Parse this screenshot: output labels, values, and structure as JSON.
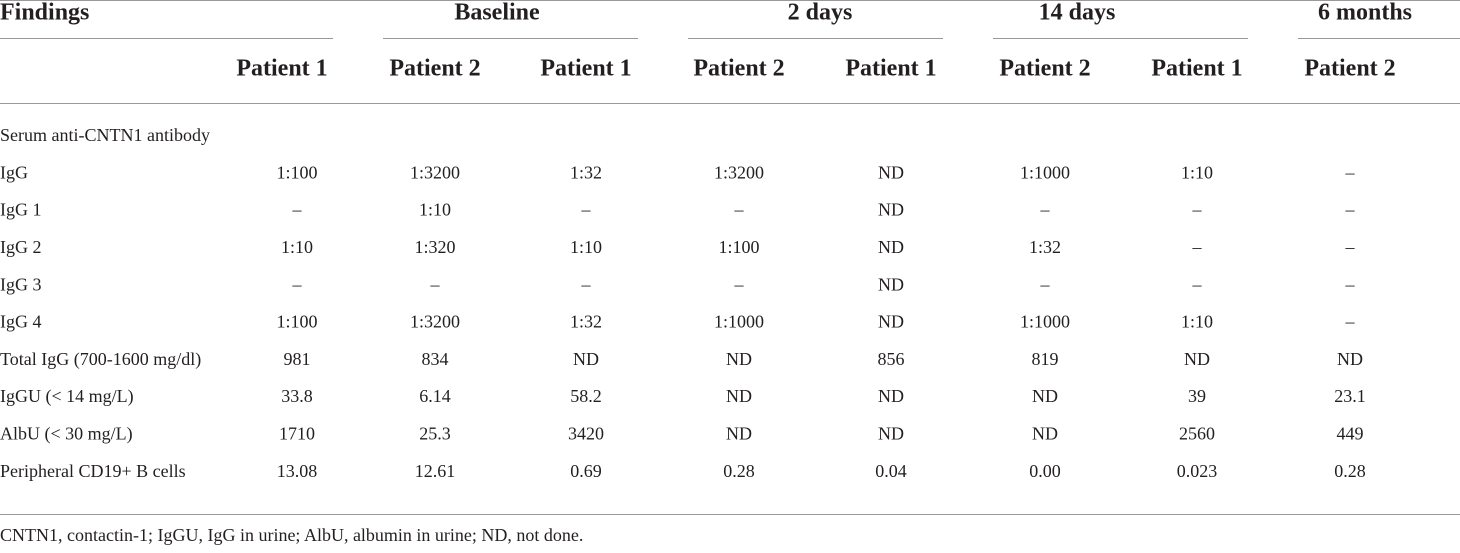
{
  "table": {
    "group_headers": [
      "Findings",
      "Baseline",
      "2 days",
      "14 days",
      "6 months"
    ],
    "column_headers": [
      "Patient 1",
      "Patient 2",
      "Patient 1",
      "Patient 2",
      "Patient 1",
      "Patient 2",
      "Patient 1",
      "Patient 2"
    ],
    "rows": [
      [
        "Serum anti-CNTN1 antibody"
      ],
      [
        "IgG",
        "1:100",
        "1:3200",
        "1:32",
        "1:3200",
        "ND",
        "1:1000",
        "1:10",
        "–"
      ],
      [
        "IgG 1",
        "–",
        "1:10",
        "–",
        "–",
        "ND",
        "–",
        "–",
        "–"
      ],
      [
        "IgG 2",
        "1:10",
        "1:320",
        "1:10",
        "1:100",
        "ND",
        "1:32",
        "–",
        "–"
      ],
      [
        "IgG 3",
        "–",
        "–",
        "–",
        "–",
        "ND",
        "–",
        "–",
        "–"
      ],
      [
        "IgG 4",
        "1:100",
        "1:3200",
        "1:32",
        "1:1000",
        "ND",
        "1:1000",
        "1:10",
        "–"
      ],
      [
        "Total IgG (700-1600 mg/dl)",
        "981",
        "834",
        "ND",
        "ND",
        "856",
        "819",
        "ND",
        "ND"
      ],
      [
        "IgGU (< 14 mg/L)",
        "33.8",
        "6.14",
        "58.2",
        "ND",
        "ND",
        "ND",
        "39",
        "23.1"
      ],
      [
        "AlbU (< 30 mg/L)",
        "1710",
        "25.3",
        "3420",
        "ND",
        "ND",
        "ND",
        "2560",
        "449"
      ],
      [
        "Peripheral CD19+ B cells",
        "13.08",
        "12.61",
        "0.69",
        "0.28",
        "0.04",
        "0.00",
        "0.023",
        "0.28"
      ]
    ],
    "footnote": "CNTN1, contactin-1; IgGU, IgG in urine; AlbU, albumin in urine; ND, not done."
  }
}
